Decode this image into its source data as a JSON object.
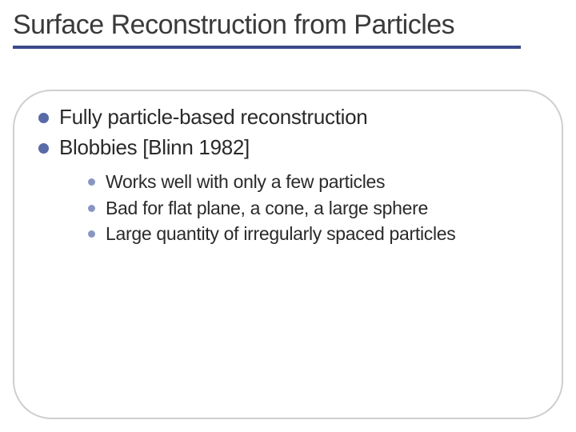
{
  "title": "Surface Reconstruction from Particles",
  "title_color": "#3a3a3a",
  "title_fontsize": 34,
  "rule_color": "#3a4a8a",
  "rule_width": 635,
  "rule_height": 4,
  "box_border_color": "#cfcfcf",
  "box_border_radius": 48,
  "bullets_lvl1_color": "#5a6aa8",
  "bullets_lvl2_color": "#8a96c2",
  "body_text_color": "#2a2a2a",
  "body_fontsize_lvl1": 26,
  "body_fontsize_lvl2": 23,
  "items": [
    {
      "text": "Fully particle-based reconstruction"
    },
    {
      "text": "Blobbies [Blinn 1982]",
      "children": [
        {
          "text": "Works well with only a few particles"
        },
        {
          "text": "Bad for flat plane, a cone, a large sphere"
        },
        {
          "text": "Large quantity of irregularly spaced particles"
        }
      ]
    }
  ]
}
